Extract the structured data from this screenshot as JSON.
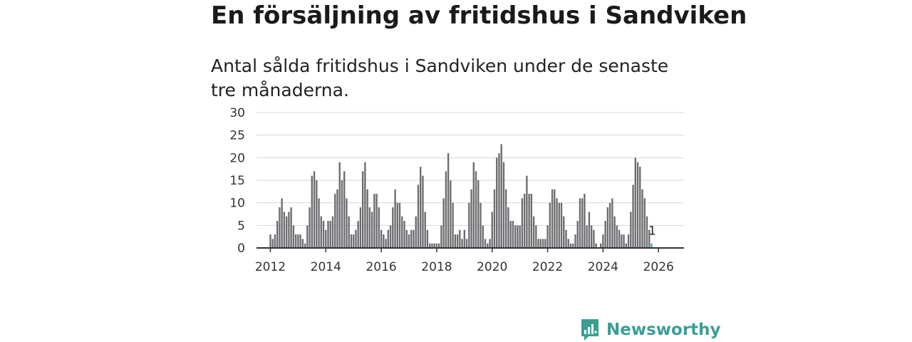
{
  "chart_data": {
    "type": "bar",
    "title": "En försäljning av fritidshus i Sandviken",
    "subtitle": "Antal sålda fritidshus i Sandviken under de senaste tre månaderna.",
    "xlabel": "",
    "ylabel": "",
    "ylim": [
      0,
      30
    ],
    "yticks": [
      0,
      5,
      10,
      15,
      20,
      25,
      30
    ],
    "xlim": [
      2011.5,
      2026.92
    ],
    "xticks": [
      2012,
      2014,
      2016,
      2018,
      2020,
      2022,
      2024,
      2026
    ],
    "grid": true,
    "start": "2011-01",
    "values": [
      0,
      0,
      0,
      0,
      0,
      0,
      0,
      0,
      0,
      0,
      0,
      0,
      3,
      2,
      3,
      6,
      9,
      11,
      8,
      7,
      8,
      9,
      5,
      3,
      3,
      3,
      2,
      1,
      5,
      9,
      16,
      17,
      15,
      11,
      7,
      6,
      4,
      6,
      6,
      7,
      12,
      13,
      19,
      15,
      17,
      11,
      7,
      3,
      3,
      4,
      6,
      9,
      17,
      19,
      13,
      9,
      8,
      12,
      12,
      9,
      4,
      3,
      2,
      4,
      5,
      9,
      13,
      10,
      10,
      7,
      6,
      4,
      3,
      4,
      4,
      7,
      14,
      18,
      16,
      8,
      4,
      1,
      1,
      1,
      1,
      1,
      5,
      11,
      17,
      21,
      15,
      10,
      3,
      3,
      4,
      2,
      4,
      2,
      10,
      13,
      19,
      17,
      15,
      10,
      5,
      2,
      1,
      2,
      8,
      13,
      20,
      21,
      23,
      19,
      13,
      9,
      6,
      6,
      5,
      5,
      5,
      11,
      12,
      16,
      12,
      12,
      7,
      5,
      2,
      2,
      2,
      2,
      5,
      10,
      13,
      13,
      11,
      10,
      10,
      7,
      4,
      2,
      1,
      1,
      3,
      6,
      11,
      11,
      12,
      5,
      8,
      5,
      4,
      1,
      0,
      1,
      3,
      6,
      9,
      10,
      11,
      7,
      5,
      4,
      3,
      3,
      1,
      3,
      8,
      14,
      20,
      19,
      18,
      13,
      11,
      7,
      4,
      1
    ],
    "highlight_index": 177,
    "highlight_label": "1",
    "colors": {
      "bar": "#6b6b6f",
      "highlight": "#3aa59c",
      "grid": "#d6d6d6",
      "axis": "#333333"
    }
  },
  "brand": {
    "name": "Newsworthy",
    "icon": "newsworthy-chart-icon",
    "color": "#3b9e95"
  }
}
